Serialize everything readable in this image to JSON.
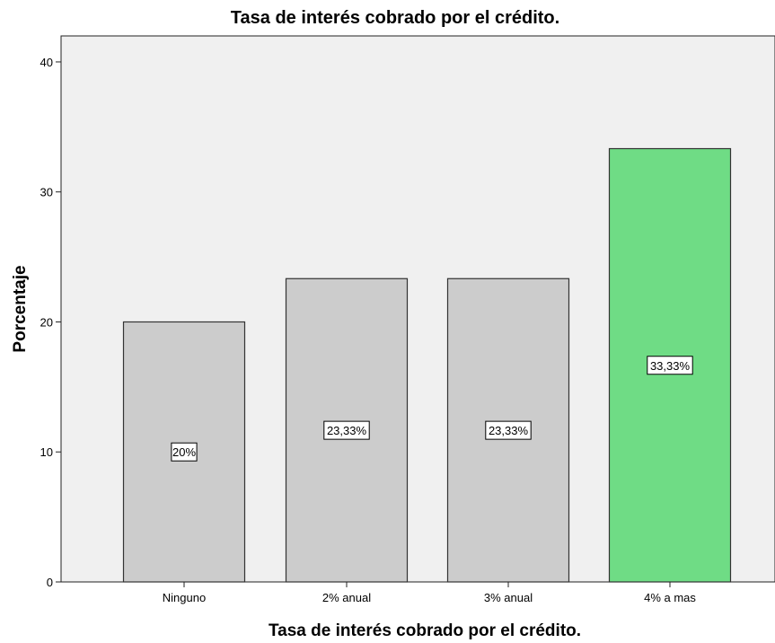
{
  "chart_data": {
    "type": "bar",
    "title": "Tasa de interés cobrado por el crédito.",
    "xlabel": "Tasa de interés cobrado por el crédito.",
    "ylabel": "Porcentaje",
    "categories": [
      "Ninguno",
      "2% anual",
      "3% anual",
      "4% a mas"
    ],
    "values": [
      20,
      23.33,
      23.33,
      33.33
    ],
    "data_labels": [
      "20%",
      "23,33%",
      "23,33%",
      "33,33%"
    ],
    "ylim": [
      0,
      42
    ],
    "yticks": [
      0,
      10,
      20,
      30,
      40
    ],
    "grid": false,
    "legend": "none",
    "colors": {
      "plot_background": "#f0f0f0",
      "bar_default": "#cccccc",
      "bar_highlight": "#6fdc85",
      "bar_border": "#333333",
      "highlight_index": 3
    }
  }
}
